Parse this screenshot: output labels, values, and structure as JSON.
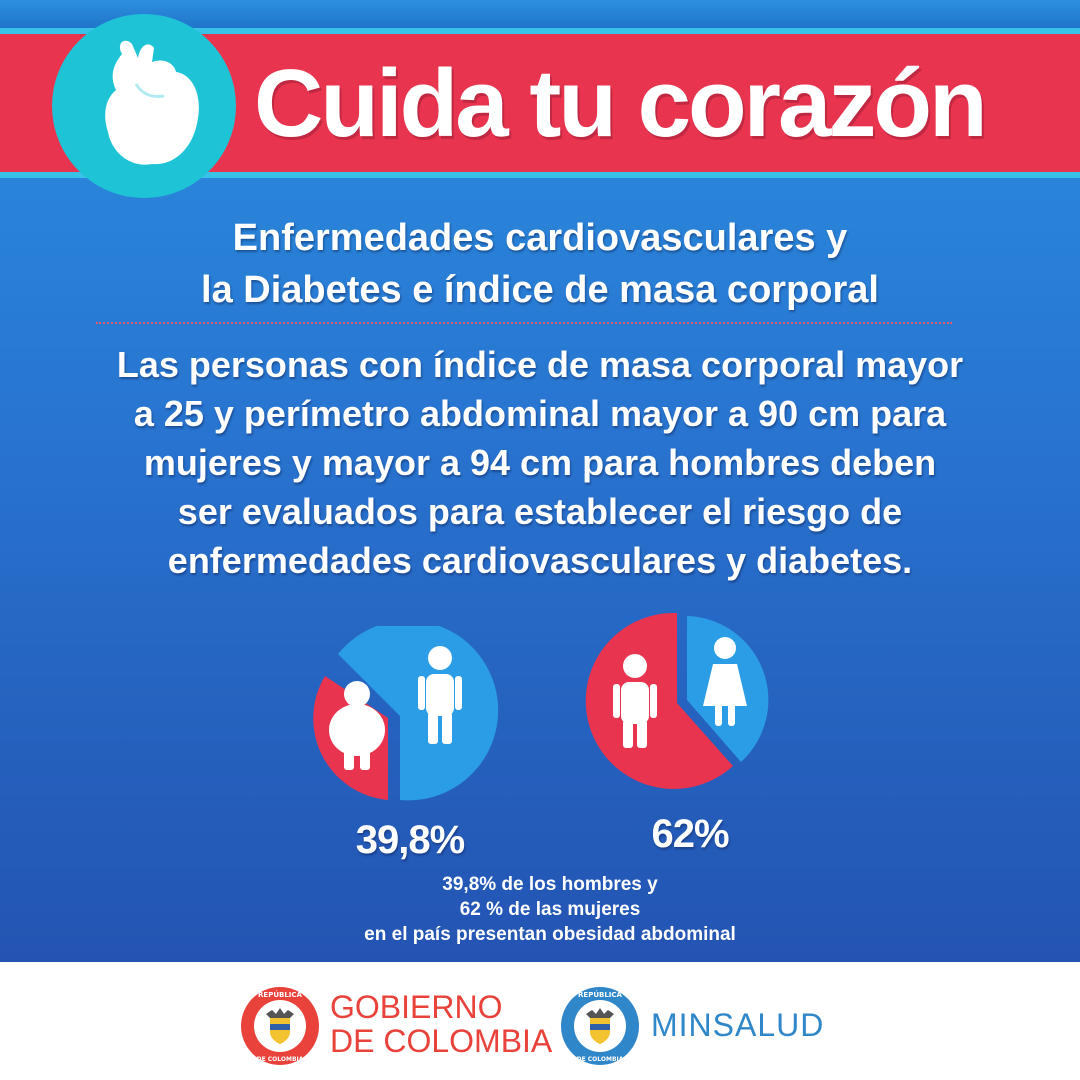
{
  "header": {
    "title": "Cuida tu corazón",
    "icon": "heart-organ-icon"
  },
  "subtitle": {
    "line1": "Enfermedades cardiovasculares y",
    "line2": "la Diabetes e índice de masa corporal"
  },
  "body": {
    "line1": "Las personas con índice de masa corporal mayor",
    "line2": "a 25 y perímetro abdominal mayor a 90 cm para",
    "line3": "mujeres y  mayor a 94 cm para  hombres deben",
    "line4": "ser evaluados para establecer el riesgo de",
    "line5": "enfermedades cardiovasculares y diabetes."
  },
  "stats": {
    "men": {
      "label": "39,8%",
      "value": 39.8,
      "icons": [
        "obese-man-icon",
        "man-icon"
      ]
    },
    "women": {
      "label": "62%",
      "value": 62,
      "icons": [
        "woman-icon",
        "woman-dress-icon"
      ]
    }
  },
  "caption": {
    "line1": "39,8% de los hombres y",
    "line2": "62 % de las mujeres",
    "line3": "en el país presentan obesidad abdominal"
  },
  "footer": {
    "gov_line1": "GOBIERNO",
    "gov_line2": "DE COLOMBIA",
    "ministry": "MINSALUD",
    "seal_top": "REPÚBLICA",
    "seal_bottom": "DE COLOMBIA"
  },
  "colors": {
    "red": "#e8344f",
    "cyan": "#1fc3d6",
    "blue_pie": "#2b9de6",
    "gov_red": "#e8423a",
    "ministry_blue": "#2f86c9"
  }
}
